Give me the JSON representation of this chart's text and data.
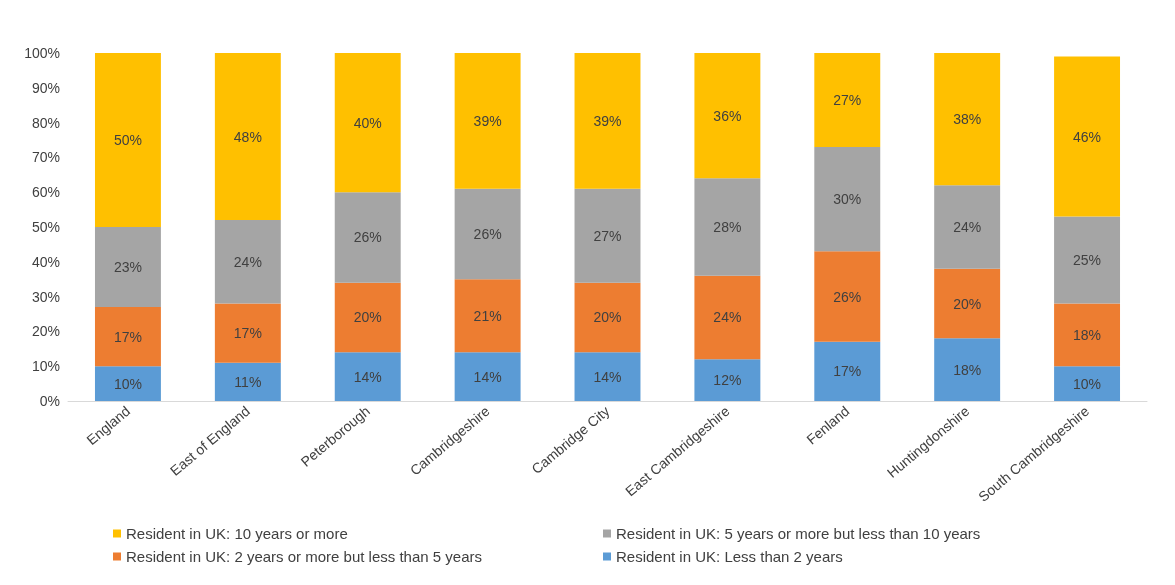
{
  "chart_data": {
    "type": "bar",
    "stacked": true,
    "categories": [
      "England",
      "East of England",
      "Peterborough",
      "Cambridgeshire",
      "Cambridge City",
      "East Cambridgeshire",
      "Fenland",
      "Huntingdonshire",
      "South Cambridgeshire"
    ],
    "series": [
      {
        "name": "Resident in UK: Less than 2 years",
        "color": "#5b9bd5",
        "values": [
          10,
          11,
          14,
          14,
          14,
          12,
          17,
          18,
          10
        ],
        "value_labels": [
          "10%",
          "11%",
          "14%",
          "14%",
          "14%",
          "12%",
          "17%",
          "18%",
          "10%"
        ]
      },
      {
        "name": "Resident in UK: 2 years or more but less than 5 years",
        "color": "#ed7d31",
        "values": [
          17,
          17,
          20,
          21,
          20,
          24,
          26,
          20,
          18
        ],
        "value_labels": [
          "17%",
          "17%",
          "20%",
          "21%",
          "20%",
          "24%",
          "26%",
          "20%",
          "18%"
        ]
      },
      {
        "name": "Resident in UK: 5 years or more but less than 10 years",
        "color": "#a5a5a5",
        "values": [
          23,
          24,
          26,
          26,
          27,
          28,
          30,
          24,
          25
        ],
        "value_labels": [
          "23%",
          "24%",
          "26%",
          "26%",
          "27%",
          "28%",
          "30%",
          "24%",
          "25%"
        ]
      },
      {
        "name": "Resident in UK: 10 years or more",
        "color": "#ffc000",
        "values": [
          50,
          48,
          40,
          39,
          39,
          36,
          27,
          38,
          46
        ],
        "value_labels": [
          "50%",
          "48%",
          "40%",
          "39%",
          "39%",
          "36%",
          "27%",
          "38%",
          "46%"
        ]
      }
    ],
    "ylim": [
      0,
      100
    ],
    "yticks": [
      {
        "value": 0,
        "label": "0%"
      },
      {
        "value": 10,
        "label": "10%"
      },
      {
        "value": 20,
        "label": "20%"
      },
      {
        "value": 30,
        "label": "30%"
      },
      {
        "value": 40,
        "label": "40%"
      },
      {
        "value": 50,
        "label": "50%"
      },
      {
        "value": 60,
        "label": "60%"
      },
      {
        "value": 70,
        "label": "70%"
      },
      {
        "value": 80,
        "label": "80%"
      },
      {
        "value": 90,
        "label": "90%"
      },
      {
        "value": 100,
        "label": "100%"
      }
    ],
    "grid": false,
    "legend": "bottom"
  }
}
